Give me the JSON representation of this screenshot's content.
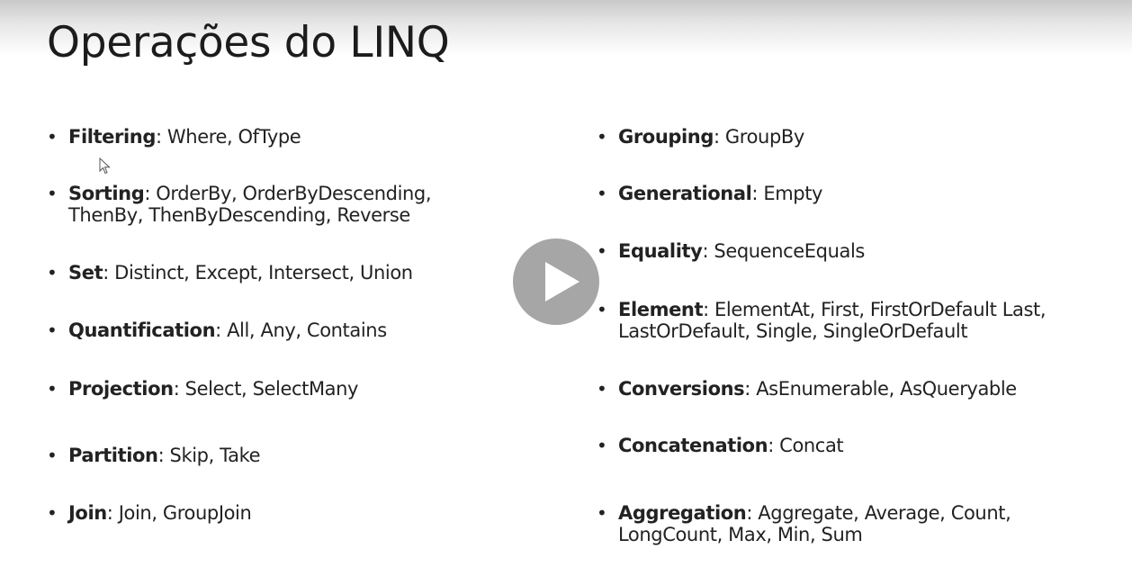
{
  "slide": {
    "title": "Operações do LINQ"
  },
  "bullet_glyph": "•",
  "left_column": [
    {
      "term": "Filtering",
      "text": ": Where, OfType"
    },
    {
      "term": "Sorting",
      "text": ": OrderBy, OrderByDescending, ThenBy, ThenByDescending, Reverse"
    },
    {
      "term": "Set",
      "text": ": Distinct, Except, Intersect, Union"
    },
    {
      "term": "Quantification",
      "text": ": All, Any, Contains"
    },
    {
      "term": "Projection",
      "text": ": Select, SelectMany"
    },
    {
      "term": "Partition",
      "text": ": Skip, Take"
    },
    {
      "term": "Join",
      "text": ": Join, GroupJoin"
    }
  ],
  "right_column": [
    {
      "term": "Grouping",
      "text": ": GroupBy"
    },
    {
      "term": "Generational",
      "text": ": Empty"
    },
    {
      "term": "Equality",
      "text": ": SequenceEquals"
    },
    {
      "term": "Element",
      "text": ": ElementAt, First, FirstOrDefault Last, LastOrDefault, Single, SingleOrDefault"
    },
    {
      "term": "Conversions",
      "text": ": AsEnumerable, AsQueryable"
    },
    {
      "term": "Concatenation",
      "text": ": Concat"
    },
    {
      "term": "Aggregation",
      "text": ": Aggregate, Average, Count, LongCount, Max, Min, Sum"
    }
  ],
  "icons": {
    "play": "play-icon",
    "cursor": "mouse-pointer-icon"
  },
  "colors": {
    "play_button_bg": "#969696",
    "text": "#222222"
  }
}
